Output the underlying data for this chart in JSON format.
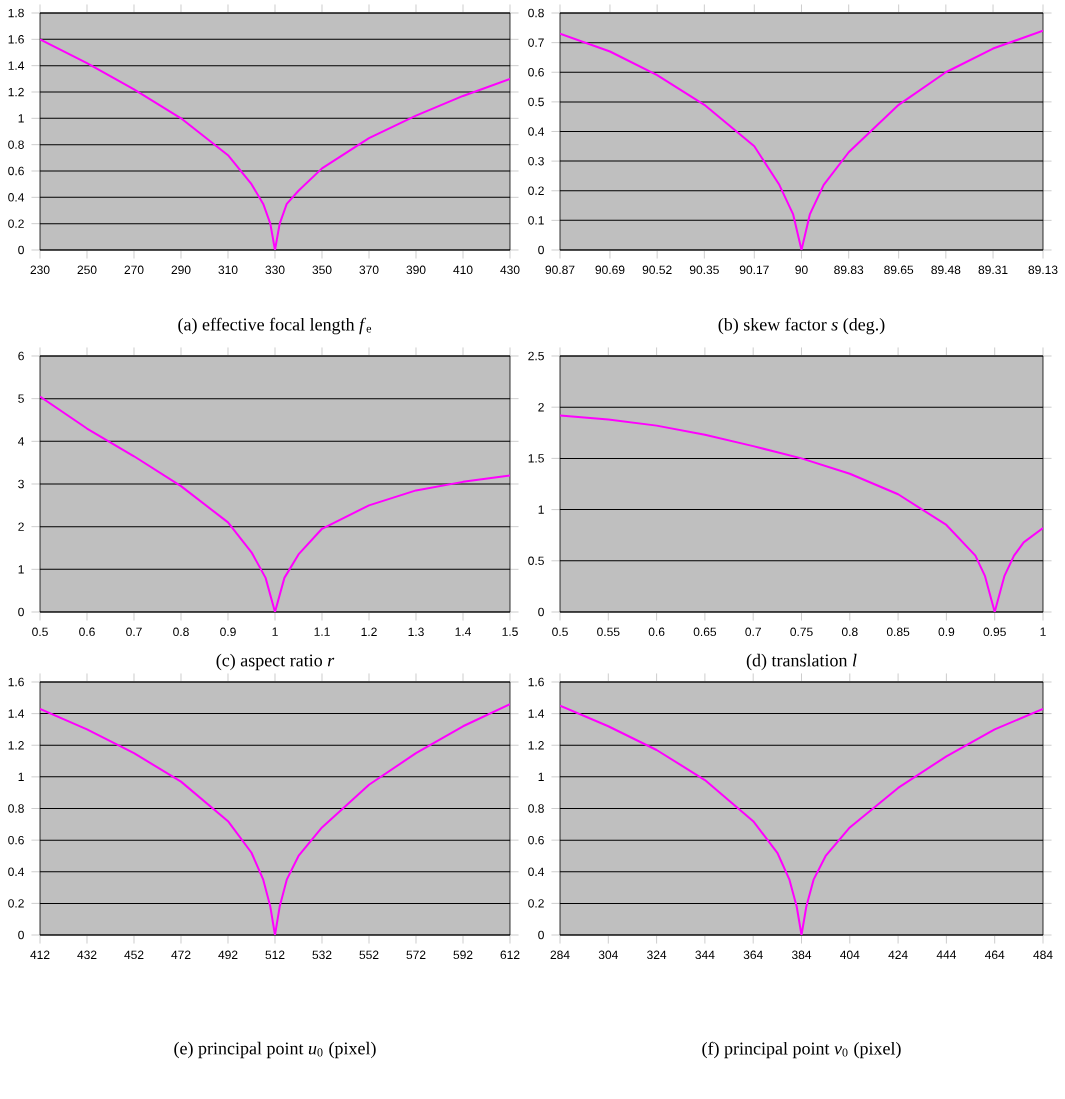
{
  "chart_data": [
    {
      "type": "line",
      "title": "(a) effective focal length *f*$_{e}$",
      "x": [
        230,
        250,
        270,
        290,
        310,
        320,
        325,
        328,
        330,
        332,
        335,
        340,
        350,
        370,
        390,
        410,
        430
      ],
      "series": [
        {
          "color": "#ff00ff",
          "values": [
            1.6,
            1.42,
            1.22,
            1.0,
            0.72,
            0.5,
            0.35,
            0.2,
            0,
            0.2,
            0.35,
            0.45,
            0.62,
            0.85,
            1.02,
            1.17,
            1.3
          ]
        }
      ],
      "xlim": [
        230,
        430
      ],
      "xticks": [
        230,
        250,
        270,
        290,
        310,
        330,
        350,
        370,
        390,
        410,
        430
      ],
      "ylim": [
        0,
        1.8
      ],
      "yticks": [
        0,
        0.2,
        0.4,
        0.6,
        0.8,
        1,
        1.2,
        1.4,
        1.6,
        1.8
      ],
      "grid": "y",
      "marker": "none",
      "line_style": "solid"
    },
    {
      "type": "line",
      "title": "(b) skew factor *s* (deg.)",
      "x": [
        90.87,
        90.69,
        90.52,
        90.35,
        90.17,
        90.08,
        90.03,
        90,
        89.97,
        89.92,
        89.83,
        89.65,
        89.48,
        89.31,
        89.13
      ],
      "series": [
        {
          "color": "#ff00ff",
          "values": [
            0.73,
            0.67,
            0.59,
            0.49,
            0.35,
            0.22,
            0.12,
            0,
            0.12,
            0.22,
            0.33,
            0.49,
            0.6,
            0.68,
            0.74
          ]
        }
      ],
      "xlim": [
        90.87,
        89.13
      ],
      "xticks": [
        90.87,
        90.69,
        90.52,
        90.35,
        90.17,
        90,
        89.83,
        89.65,
        89.48,
        89.31,
        89.13
      ],
      "ylim": [
        0,
        0.8
      ],
      "yticks": [
        0,
        0.1,
        0.2,
        0.3,
        0.4,
        0.5,
        0.6,
        0.7,
        0.8
      ],
      "grid": "y",
      "marker": "none",
      "line_style": "solid"
    },
    {
      "type": "line",
      "title": "(c) aspect ratio *r*",
      "x": [
        0.5,
        0.6,
        0.7,
        0.8,
        0.9,
        0.95,
        0.98,
        1.0,
        1.02,
        1.05,
        1.1,
        1.2,
        1.3,
        1.4,
        1.5
      ],
      "series": [
        {
          "color": "#ff00ff",
          "values": [
            5.05,
            4.3,
            3.65,
            2.95,
            2.1,
            1.4,
            0.8,
            0,
            0.8,
            1.35,
            1.95,
            2.5,
            2.85,
            3.05,
            3.2
          ]
        }
      ],
      "xlim": [
        0.5,
        1.5
      ],
      "xticks": [
        0.5,
        0.6,
        0.7,
        0.8,
        0.9,
        1,
        1.1,
        1.2,
        1.3,
        1.4,
        1.5
      ],
      "ylim": [
        0,
        6
      ],
      "yticks": [
        0,
        1,
        2,
        3,
        4,
        5,
        6
      ],
      "grid": "y",
      "marker": "none",
      "line_style": "solid"
    },
    {
      "type": "line",
      "title": "(d) translation *l*",
      "x": [
        0.5,
        0.55,
        0.6,
        0.65,
        0.7,
        0.75,
        0.8,
        0.85,
        0.9,
        0.93,
        0.94,
        0.95,
        0.96,
        0.97,
        0.98,
        1.0
      ],
      "series": [
        {
          "color": "#ff00ff",
          "values": [
            1.92,
            1.88,
            1.82,
            1.73,
            1.62,
            1.5,
            1.35,
            1.15,
            0.85,
            0.55,
            0.35,
            0,
            0.35,
            0.55,
            0.68,
            0.82
          ]
        }
      ],
      "xlim": [
        0.5,
        1
      ],
      "xticks": [
        0.5,
        0.55,
        0.6,
        0.65,
        0.7,
        0.75,
        0.8,
        0.85,
        0.9,
        0.95,
        1
      ],
      "ylim": [
        0,
        2.5
      ],
      "yticks": [
        0,
        0.5,
        1,
        1.5,
        2,
        2.5
      ],
      "grid": "y",
      "marker": "none",
      "line_style": "solid"
    },
    {
      "type": "line",
      "title": "(e) principal point *u*$_{0}$ (pixel)",
      "x": [
        412,
        432,
        452,
        472,
        492,
        502,
        507,
        510,
        512,
        514,
        517,
        522,
        532,
        552,
        572,
        592,
        612
      ],
      "series": [
        {
          "color": "#ff00ff",
          "values": [
            1.43,
            1.3,
            1.15,
            0.97,
            0.72,
            0.52,
            0.35,
            0.18,
            0,
            0.18,
            0.35,
            0.5,
            0.68,
            0.95,
            1.15,
            1.32,
            1.46
          ]
        }
      ],
      "xlim": [
        412,
        612
      ],
      "xticks": [
        412,
        432,
        452,
        472,
        492,
        512,
        532,
        552,
        572,
        592,
        612
      ],
      "ylim": [
        0,
        1.6
      ],
      "yticks": [
        0,
        0.2,
        0.4,
        0.6,
        0.8,
        1,
        1.2,
        1.4,
        1.6
      ],
      "grid": "y",
      "marker": "none",
      "line_style": "solid"
    },
    {
      "type": "line",
      "title": "(f) principal point *v*$_{0}$ (pixel)",
      "x": [
        284,
        304,
        324,
        344,
        364,
        374,
        379,
        382,
        384,
        386,
        389,
        394,
        404,
        424,
        444,
        464,
        484
      ],
      "series": [
        {
          "color": "#ff00ff",
          "values": [
            1.45,
            1.32,
            1.17,
            0.98,
            0.72,
            0.52,
            0.35,
            0.18,
            0,
            0.18,
            0.35,
            0.5,
            0.68,
            0.93,
            1.13,
            1.3,
            1.43
          ]
        }
      ],
      "xlim": [
        284,
        484
      ],
      "xticks": [
        284,
        304,
        324,
        344,
        364,
        384,
        404,
        424,
        444,
        464,
        484
      ],
      "ylim": [
        0,
        1.6
      ],
      "yticks": [
        0,
        0.2,
        0.4,
        0.6,
        0.8,
        1,
        1.2,
        1.4,
        1.6
      ],
      "grid": "y",
      "marker": "none",
      "line_style": "solid"
    }
  ]
}
